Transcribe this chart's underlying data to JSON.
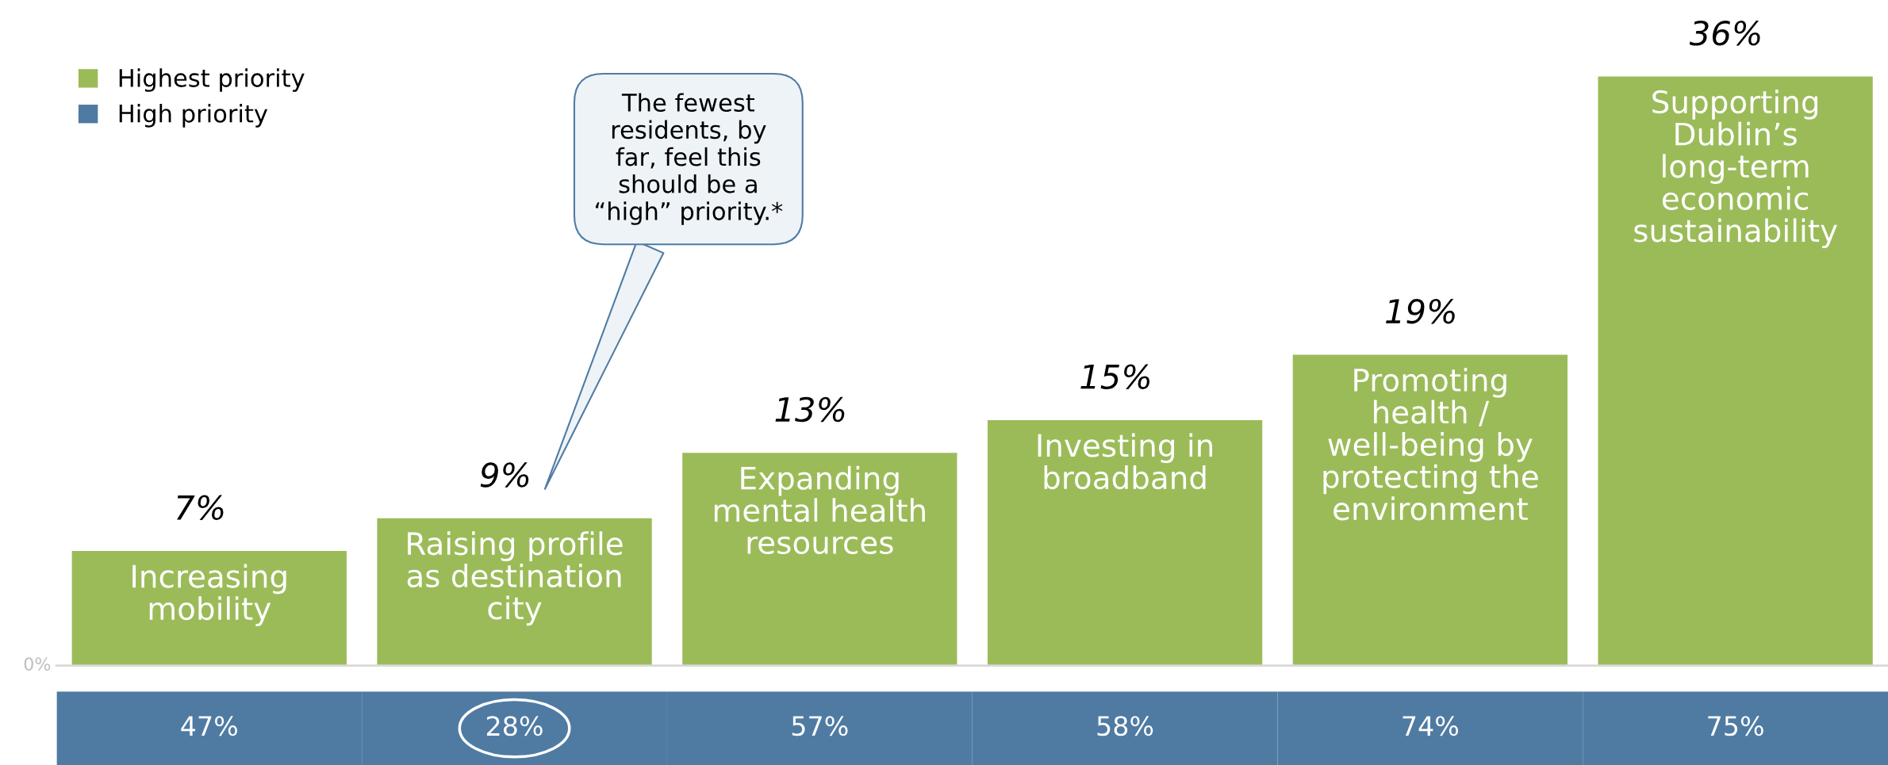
{
  "chart_data": [
    {
      "type": "bar",
      "categories": [
        "Increasing mobility",
        "Raising profile as destination city",
        "Expanding mental health resources",
        "Investing in broadband",
        "Promoting health / well-being by protecting the environment",
        "Supporting Dublin’s long-term economic sustainability"
      ],
      "series": [
        {
          "name": "Highest priority",
          "color": "#9bbb59",
          "values": [
            7,
            9,
            13,
            15,
            19,
            36
          ],
          "value_labels": [
            "7%",
            "9%",
            "13%",
            "15%",
            "19%",
            "36%"
          ]
        }
      ],
      "annotations": [
        "0%",
        "The fewest residents, by far, feel this should be a “high” priority.*"
      ],
      "legend": "top left"
    },
    {
      "type": "other",
      "categories": [
        null,
        null,
        null,
        null,
        null,
        null
      ],
      "series": [
        {
          "name": "High priority",
          "color": "#4f7ba3",
          "values": [
            47,
            28,
            57,
            58,
            74,
            75
          ],
          "value_labels": [
            "47%",
            "28%",
            "57%",
            "58%",
            "74%",
            "75%"
          ]
        }
      ]
    }
  ]
}
